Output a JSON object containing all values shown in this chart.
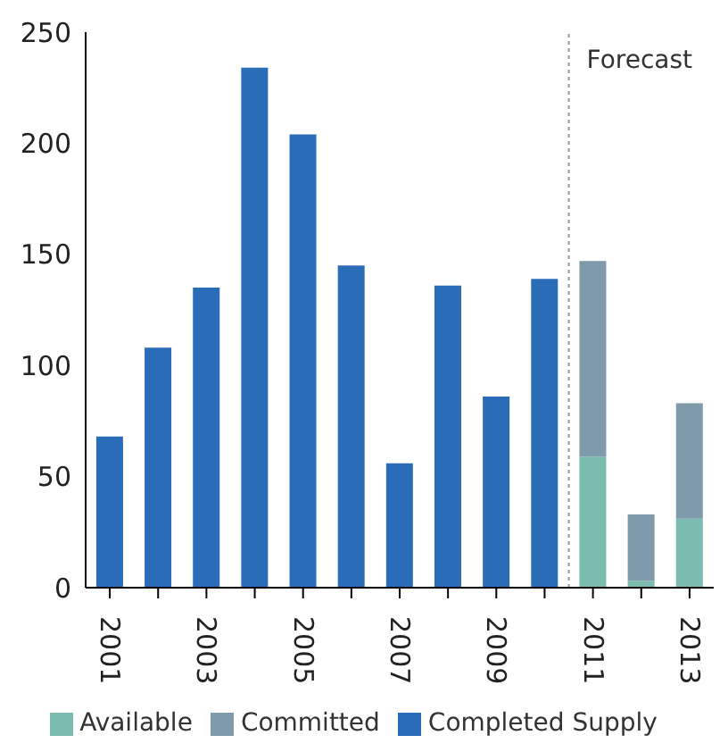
{
  "chart_data": {
    "type": "bar",
    "stacked": true,
    "categories": [
      "2001",
      null,
      "2003",
      null,
      "2005",
      null,
      "2007",
      null,
      "2009",
      null,
      "2011",
      null,
      "2013"
    ],
    "series": [
      {
        "name": "Available",
        "color": "#7bbcb0",
        "values": [
          null,
          null,
          null,
          null,
          null,
          null,
          null,
          null,
          null,
          null,
          59,
          3,
          31
        ]
      },
      {
        "name": "Committed",
        "color": "#7f9aaa",
        "values": [
          null,
          null,
          null,
          null,
          null,
          null,
          null,
          null,
          null,
          null,
          88,
          30,
          52
        ]
      },
      {
        "name": "Completed Supply",
        "color": "#2b6cb8",
        "values": [
          68,
          108,
          135,
          234,
          204,
          145,
          56,
          136,
          86,
          139,
          null,
          null,
          null
        ]
      }
    ],
    "ylim": [
      0,
      250
    ],
    "yticks": [
      0,
      50,
      100,
      150,
      200,
      250
    ],
    "grid": false,
    "legend": "bottom",
    "annotations": [
      "Forecast"
    ]
  }
}
